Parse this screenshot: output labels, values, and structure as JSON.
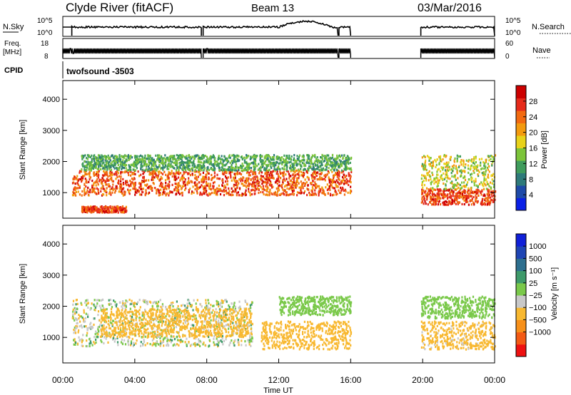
{
  "header": {
    "title": "Clyde River (fitACF)",
    "beam": "Beam 13",
    "date": "03/Mar/2016"
  },
  "panels": {
    "nsky": {
      "label": "N.Sky",
      "ticks_left": [
        "10^5",
        "10^0"
      ],
      "right_label": "N.Search",
      "ticks_right": [
        "10^5",
        "10^0"
      ]
    },
    "freq": {
      "label_line1": "Freq.",
      "label_line2": "[MHz]",
      "ticks_left": [
        "18",
        "8"
      ],
      "right_label": "Nave",
      "ticks_right": [
        "60",
        "0"
      ]
    },
    "cpid": {
      "label": "CPID",
      "value": "twofsound -3503"
    }
  },
  "colors": {
    "trace": "#000000",
    "power": [
      "#0a20e6",
      "#1e4aa8",
      "#2e7a7a",
      "#3f9c5c",
      "#7cc43a",
      "#e8d21a",
      "#f39a0e",
      "#f26a10",
      "#e62a1a",
      "#cc0000"
    ],
    "velocity": [
      "#ee1111",
      "#f35a14",
      "#f7901a",
      "#f8b830",
      "#c8c8c8",
      "#7ac94a",
      "#3e9a6a",
      "#2d6f8f",
      "#1e45b4",
      "#1020d8"
    ]
  },
  "chart_data": [
    {
      "type": "heatmap",
      "name": "power",
      "ylabel": "Slant Range [km]",
      "xlabel": "Time UT",
      "x_ticks": [
        "00:00",
        "04:00",
        "08:00",
        "12:00",
        "16:00",
        "20:00",
        "00:00"
      ],
      "x_range_hours": [
        0,
        24
      ],
      "y_ticks": [
        1000,
        2000,
        3000,
        4000
      ],
      "ylim": [
        180,
        4600
      ],
      "colorbar": {
        "label": "Power [dB]",
        "ticks": [
          4,
          8,
          12,
          16,
          20,
          24,
          28
        ],
        "range": [
          0,
          32
        ]
      },
      "data_gaps_hours": [
        [
          16.0,
          19.9
        ]
      ],
      "echo_bands": [
        {
          "t": [
            0.5,
            16.0
          ],
          "range_km": [
            900,
            1700
          ],
          "power_dB": [
            20,
            30
          ]
        },
        {
          "t": [
            1.0,
            16.0
          ],
          "range_km": [
            1700,
            2200
          ],
          "power_dB": [
            8,
            16
          ]
        },
        {
          "t": [
            1.0,
            3.5
          ],
          "range_km": [
            350,
            550
          ],
          "power_dB": [
            22,
            30
          ]
        },
        {
          "t": [
            19.9,
            24.0
          ],
          "range_km": [
            600,
            1100
          ],
          "power_dB": [
            22,
            30
          ]
        },
        {
          "t": [
            19.9,
            24.0
          ],
          "range_km": [
            1100,
            2200
          ],
          "power_dB": [
            12,
            22
          ]
        }
      ]
    },
    {
      "type": "heatmap",
      "name": "velocity",
      "ylabel": "Slant Range [km]",
      "xlabel": "Time UT",
      "x_ticks": [
        "00:00",
        "04:00",
        "08:00",
        "12:00",
        "16:00",
        "20:00",
        "00:00"
      ],
      "x_range_hours": [
        0,
        24
      ],
      "y_ticks": [
        1000,
        2000,
        3000,
        4000
      ],
      "ylim": [
        180,
        4600
      ],
      "colorbar": {
        "label": "Velocity [m s⁻¹]",
        "ticks": [
          "1000",
          "500",
          "100",
          "25",
          "−25",
          "−100",
          "−500",
          "−1000"
        ]
      },
      "data_gaps_hours": [
        [
          16.0,
          19.9
        ]
      ],
      "echo_bands": [
        {
          "t": [
            0.5,
            10.5
          ],
          "range_km": [
            700,
            2200
          ],
          "velocity_ms": [
            -150,
            50
          ]
        },
        {
          "t": [
            2.0,
            10.5
          ],
          "range_km": [
            1000,
            1900
          ],
          "velocity_ms": [
            -400,
            -150
          ]
        },
        {
          "t": [
            11.0,
            16.0
          ],
          "range_km": [
            600,
            1500
          ],
          "velocity_ms": [
            -500,
            -100
          ]
        },
        {
          "t": [
            12.0,
            16.0
          ],
          "range_km": [
            1700,
            2300
          ],
          "velocity_ms": [
            -25,
            25
          ]
        },
        {
          "t": [
            19.9,
            24.0
          ],
          "range_km": [
            1600,
            2300
          ],
          "velocity_ms": [
            -25,
            25
          ]
        },
        {
          "t": [
            19.9,
            24.0
          ],
          "range_km": [
            600,
            1500
          ],
          "velocity_ms": [
            -300,
            -80
          ]
        }
      ]
    }
  ]
}
